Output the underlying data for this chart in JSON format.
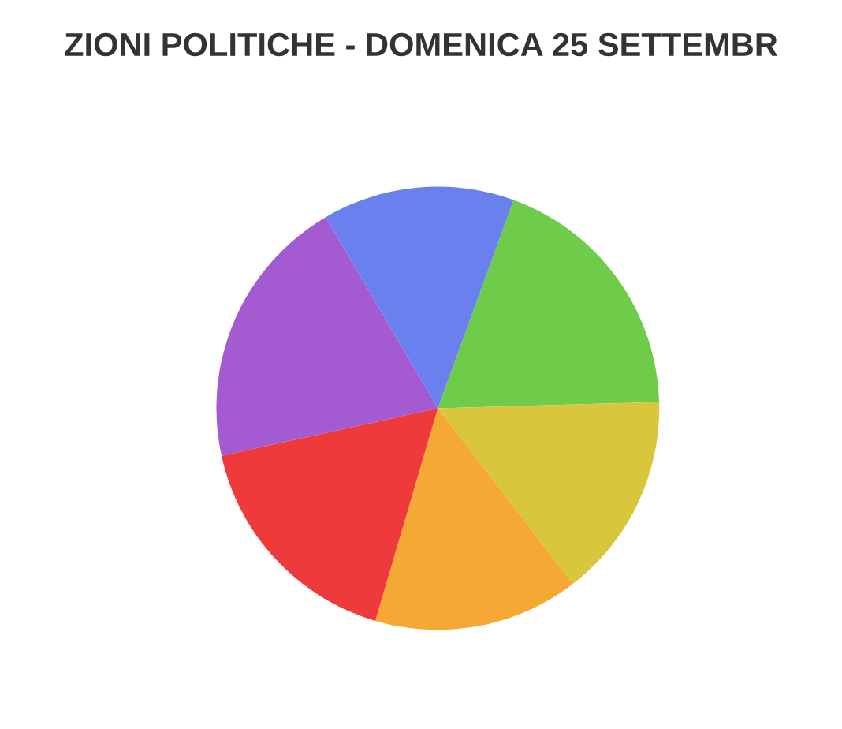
{
  "chart_data": {
    "type": "pie",
    "title": "ZIONI POLITICHE - DOMENICA 25 SETTEMBR",
    "categories": [
      null,
      null,
      null,
      null,
      null,
      null
    ],
    "values": [
      19,
      15,
      15,
      17,
      20,
      14
    ],
    "colors": [
      "#6fcb4a",
      "#d8c63c",
      "#f5a833",
      "#ee3a3a",
      "#a45ad0",
      "#6a80ee"
    ]
  }
}
